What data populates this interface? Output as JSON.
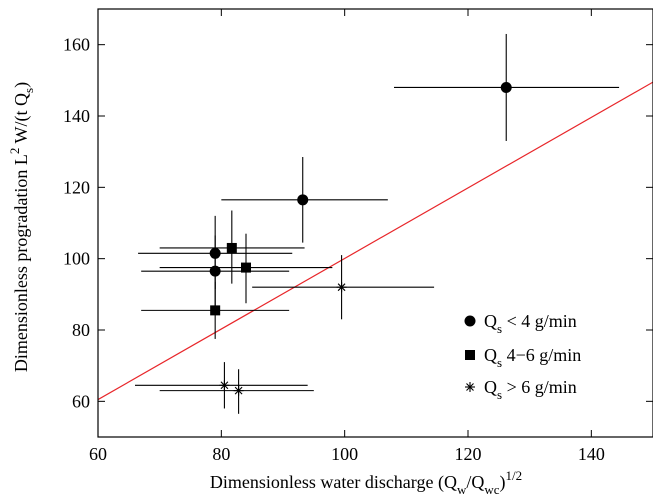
{
  "chart_data": {
    "type": "scatter",
    "title": "",
    "xlabel": {
      "main": "Dimensionless water discharge (Q",
      "sub1": "w",
      "mid": "/Q",
      "sub2": "wc",
      "close": ")",
      "sup": "1/2"
    },
    "ylabel": {
      "main": "Dimensionless progradation L",
      "sup": "2",
      "mid": " W/(t Q",
      "sub": "s",
      "close": ")"
    },
    "xlim": [
      60,
      150
    ],
    "ylim": [
      50,
      170
    ],
    "xticks": [
      60,
      80,
      100,
      120,
      140
    ],
    "yticks": [
      60,
      80,
      100,
      120,
      140,
      160
    ],
    "grid": false,
    "legend_position": "bottom-right",
    "series": [
      {
        "name": {
          "prefix": "Q",
          "sub": "s",
          "suffix": " < 4 g/min"
        },
        "marker": "circle",
        "points": [
          {
            "x": 126.2,
            "y": 148,
            "xerr": [
              108,
              144.5
            ],
            "yerr": [
              133,
              163
            ]
          },
          {
            "x": 93.2,
            "y": 116.5,
            "xerr": [
              80,
              107
            ],
            "yerr": [
              104.5,
              128.5
            ]
          },
          {
            "x": 79.0,
            "y": 101.5,
            "xerr": [
              66.5,
              91.5
            ],
            "yerr": [
              91.5,
              112
            ]
          },
          {
            "x": 79.0,
            "y": 96.5,
            "xerr": [
              67,
              91
            ],
            "yerr": [
              85.5,
              106.5
            ]
          }
        ]
      },
      {
        "name": {
          "prefix": "Q",
          "sub": "s",
          "suffix": " 4−6 g/min"
        },
        "marker": "square",
        "points": [
          {
            "x": 81.7,
            "y": 103.0,
            "xerr": [
              70,
              93.5
            ],
            "yerr": [
              93,
              113.5
            ]
          },
          {
            "x": 84.0,
            "y": 97.5,
            "xerr": [
              70,
              98
            ],
            "yerr": [
              87.5,
              107
            ]
          },
          {
            "x": 79.0,
            "y": 85.5,
            "xerr": [
              67,
              91
            ],
            "yerr": [
              77.5,
              93.5
            ]
          }
        ]
      },
      {
        "name": {
          "prefix": "Q",
          "sub": "s",
          "suffix": " > 6 g/min"
        },
        "marker": "star",
        "points": [
          {
            "x": 99.5,
            "y": 92.0,
            "xerr": [
              85,
              114.5
            ],
            "yerr": [
              83,
              101
            ]
          },
          {
            "x": 80.5,
            "y": 64.5,
            "xerr": [
              66,
              94
            ],
            "yerr": [
              58,
              71
            ]
          },
          {
            "x": 82.8,
            "y": 63.0,
            "xerr": [
              70,
              95
            ],
            "yerr": [
              56.5,
              69
            ]
          }
        ]
      }
    ],
    "fit_line": {
      "x": [
        60,
        150
      ],
      "y": [
        60.5,
        149.5
      ],
      "color": "#e8262a"
    }
  }
}
